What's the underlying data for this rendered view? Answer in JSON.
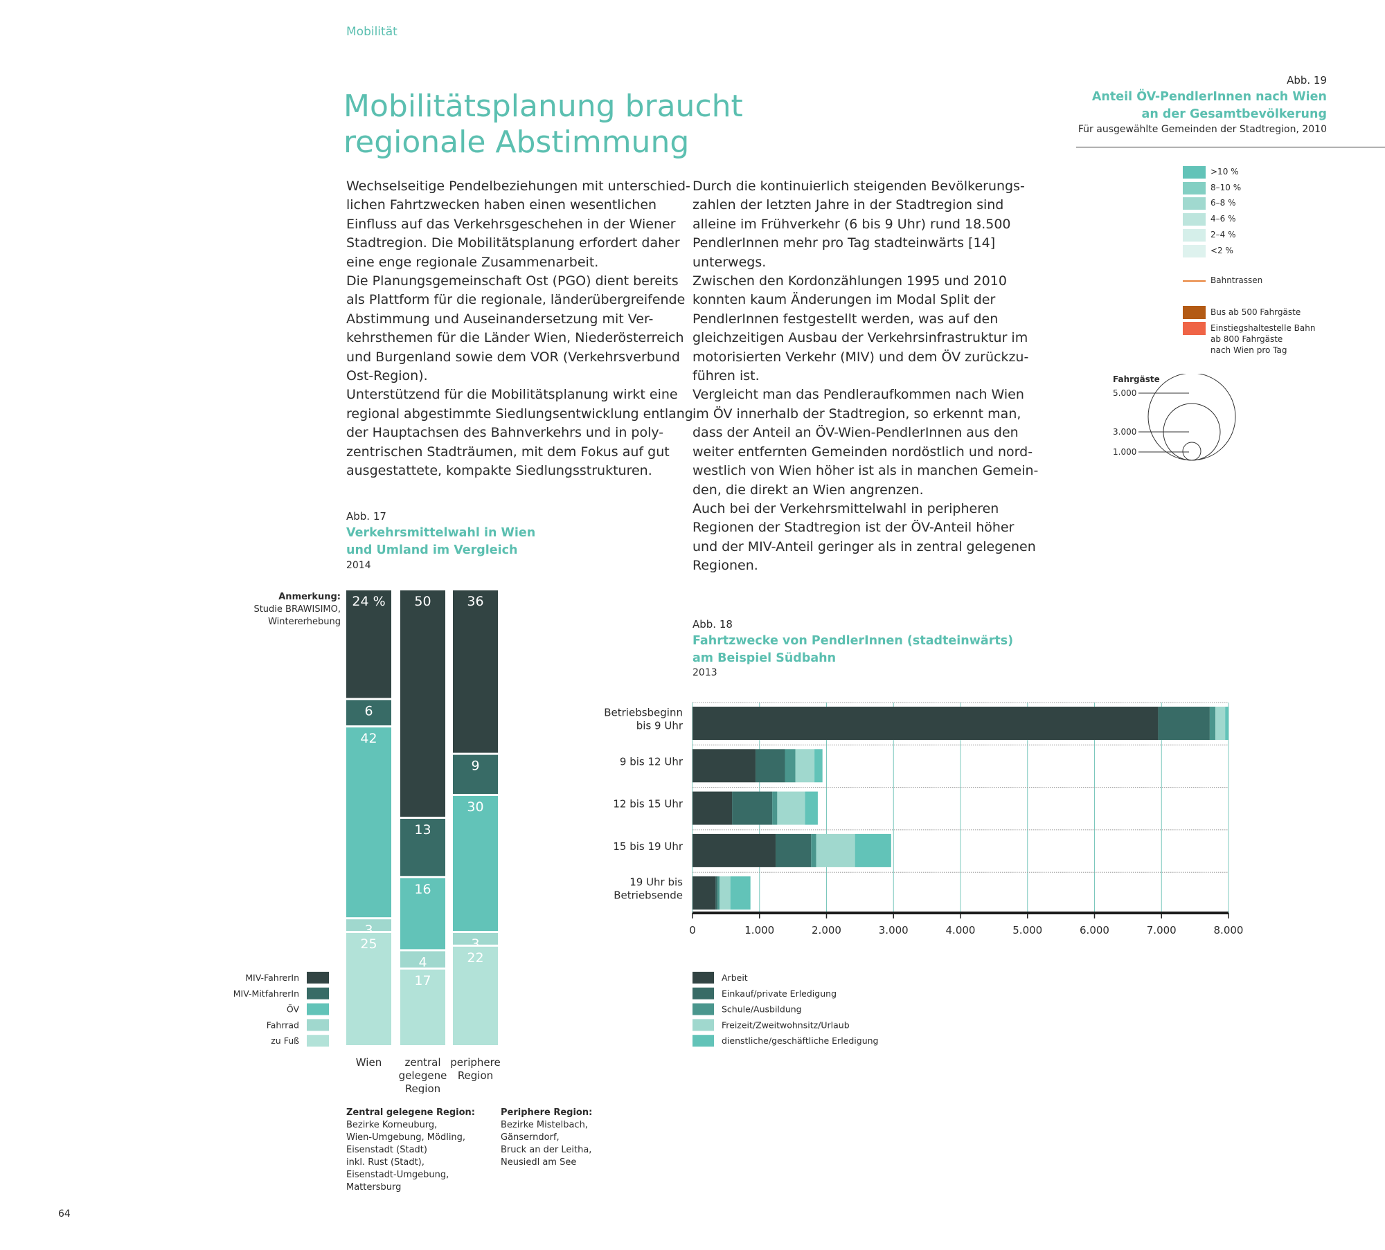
{
  "page": {
    "section": "Mobilität",
    "title_lines": [
      "Mobilitätsplanung braucht",
      "regionale Abstimmung"
    ],
    "page_number": "64"
  },
  "text": {
    "left_column": [
      "Wechselseitige Pendelbeziehungen mit unterschied-",
      "lichen Fahrtzwecken haben einen wesentlichen",
      "Einfluss auf das Verkehrsgeschehen in der Wiener",
      "Stadtregion. Die Mobilitätsplanung erfordert daher",
      "eine enge regionale Zusammenarbeit.",
      "Die Planungsgemeinschaft Ost (PGO) dient bereits",
      "als Plattform für die regionale, länderübergreifende",
      "Abstimmung und Auseinandersetzung mit Ver-",
      "kehrsthemen für die Länder Wien, Niederösterreich",
      "und Burgenland sowie dem VOR (Verkehrsverbund",
      "Ost-Region).",
      "Unterstützend für die Mobilitätsplanung wirkt eine",
      "regional abgestimmte Siedlungsentwicklung entlang",
      "der Hauptachsen des Bahnverkehrs und in poly-",
      "zentrischen Stadträumen, mit dem Fokus auf gut",
      "ausgestattete, kompakte Siedlungsstrukturen."
    ],
    "right_column": [
      "Durch die kontinuierlich steigenden Bevölkerungs-",
      "zahlen der letzten Jahre in der Stadtregion sind",
      "alleine im Frühverkehr (6 bis 9 Uhr) rund 18.500",
      "PendlerInnen mehr pro Tag stadteinwärts [14]",
      "unterwegs.",
      "Zwischen den Kordonzählungen 1995 und 2010",
      "konnten kaum Änderungen im Modal Split der",
      "PendlerInnen festgestellt werden, was auf den",
      "gleichzeitigen Ausbau der Verkehrsinfrastruktur im",
      "motorisierten Verkehr (MIV) und dem ÖV zurückzu-",
      "führen ist.",
      "Vergleicht man das Pendleraufkommen nach Wien",
      "im ÖV innerhalb der Stadtregion, so erkennt man,",
      "dass der Anteil an ÖV-Wien-PendlerInnen aus den",
      "weiter entfernten Gemeinden nordöstlich und nord-",
      "westlich von Wien höher ist als in manchen Gemein-",
      "den, die direkt an Wien angrenzen.",
      "Auch bei der Verkehrsmittelwahl in peripheren",
      "Regionen der Stadtregion ist der ÖV-Anteil höher",
      "und der MIV-Anteil geringer als in zentral gelegenen",
      "Regionen."
    ]
  },
  "colors": {
    "accent": "#5bbfb0",
    "miv_fahrer": "#324443",
    "miv_mitfahrer": "#386b66",
    "schule": "#4a968d",
    "oev": "#62c3b8",
    "fahrrad": "#a0d8ce",
    "fuss": "#b2e2d8"
  },
  "chart_data": [
    {
      "type": "bar",
      "stacked": true,
      "orientation": "vertical",
      "abb": "Abb. 17",
      "title": "Verkehrsmittelwahl in Wien und Umland im Vergleich",
      "title_lines": [
        "Verkehrsmittelwahl in Wien",
        "und Umland im Vergleich"
      ],
      "subtitle": "2014",
      "note_label": "Anmerkung:",
      "note_lines": [
        "Studie BRAWISIMO,",
        "Wintererhebung"
      ],
      "unit": "%",
      "categories": [
        "Wien",
        "zentral gelegene Region",
        "periphere Region"
      ],
      "category_lines": [
        [
          "Wien"
        ],
        [
          "zentral",
          "gelegene",
          "Region"
        ],
        [
          "periphere",
          "Region"
        ]
      ],
      "series": [
        {
          "name": "MIV-FahrerIn",
          "color": "#324443",
          "values": [
            24,
            50,
            36
          ]
        },
        {
          "name": "MIV-MitfahrerIn",
          "color": "#386b66",
          "values": [
            6,
            13,
            9
          ]
        },
        {
          "name": "ÖV",
          "color": "#62c3b8",
          "values": [
            42,
            16,
            30
          ]
        },
        {
          "name": "Fahrrad",
          "color": "#a0d8ce",
          "values": [
            3,
            4,
            3
          ]
        },
        {
          "name": "zu Fuß",
          "color": "#b2e2d8",
          "values": [
            25,
            17,
            22
          ]
        }
      ],
      "first_label": "24 %",
      "ylim": [
        0,
        100
      ],
      "footnotes": [
        {
          "heading": "Zentral gelegene Region:",
          "lines": [
            "Bezirke Korneuburg,",
            "Wien-Umgebung, Mödling,",
            "Eisenstadt (Stadt)",
            "inkl. Rust (Stadt),",
            "Eisenstadt-Umgebung,",
            "Mattersburg"
          ]
        },
        {
          "heading": "Periphere Region:",
          "lines": [
            "Bezirke Mistelbach,",
            "Gänserndorf,",
            "Bruck an der Leitha,",
            "Neusiedl am See"
          ]
        }
      ]
    },
    {
      "type": "bar",
      "stacked": true,
      "orientation": "horizontal",
      "abb": "Abb. 18",
      "title": "Fahrtzwecke von PendlerInnen (stadteinwärts) am Beispiel Südbahn",
      "title_lines": [
        "Fahrtzwecke von PendlerInnen (stadteinwärts)",
        "am Beispiel Südbahn"
      ],
      "subtitle": "2013",
      "categories": [
        "Betriebsbeginn bis 9 Uhr",
        "9 bis 12 Uhr",
        "12 bis 15 Uhr",
        "15 bis 19 Uhr",
        "19 Uhr bis Betriebsende"
      ],
      "category_lines": [
        [
          "Betriebsbeginn",
          "bis 9 Uhr"
        ],
        [
          "9 bis 12 Uhr"
        ],
        [
          "12 bis 15 Uhr"
        ],
        [
          "15 bis 19 Uhr"
        ],
        [
          "19 Uhr bis",
          "Betriebsende"
        ]
      ],
      "series": [
        {
          "name": "Arbeit",
          "color": "#324443",
          "values": [
            6950,
            940,
            590,
            1240,
            345
          ]
        },
        {
          "name": "Einkauf/private Erledigung",
          "color": "#386b66",
          "values": [
            770,
            440,
            600,
            530,
            30
          ]
        },
        {
          "name": "Schule/Ausbildung",
          "color": "#4a968d",
          "values": [
            85,
            155,
            75,
            75,
            30
          ]
        },
        {
          "name": "Freizeit/Zweitwohnsitz/Urlaub",
          "color": "#a0d8ce",
          "values": [
            145,
            285,
            415,
            580,
            160
          ]
        },
        {
          "name": "dienstliche/geschäftliche Erledigung",
          "color": "#62c3b8",
          "values": [
            50,
            120,
            190,
            540,
            300
          ]
        }
      ],
      "xlim": [
        0,
        8000
      ],
      "xticks": [
        0,
        1000,
        2000,
        3000,
        4000,
        5000,
        6000,
        7000,
        8000
      ],
      "xtick_labels": [
        "0",
        "1.000",
        "2.000",
        "3.000",
        "4.000",
        "5.000",
        "6.000",
        "7.000",
        "8.000"
      ],
      "grid": true,
      "legend": "bottom-left"
    }
  ],
  "map_legend": {
    "abb": "Abb. 19",
    "title_lines": [
      "Anteil ÖV-PendlerInnen nach Wien",
      "an der Gesamtbevölkerung"
    ],
    "subtitle": "Für ausgewählte Gemeinden der Stadtregion, 2010",
    "classes": [
      {
        "label": ">10 %",
        "color": "#62c3b8"
      },
      {
        "label": "8–10 %",
        "color": "#83cfc3"
      },
      {
        "label": "6–8 %",
        "color": "#a0d9cf"
      },
      {
        "label": "4–6 %",
        "color": "#bde5dd"
      },
      {
        "label": "2–4 %",
        "color": "#d5efea"
      },
      {
        "label": "<2 %",
        "color": "#def2ee"
      }
    ],
    "rail_label": "Bahntrassen",
    "rail_color": "#e8833a",
    "bus_label": "Bus ab 500 Fahrgäste",
    "bus_color": "#b35a14",
    "stop_label_lines": [
      "Einstiegshaltestelle Bahn",
      "ab 800 Fahrgäste",
      "nach Wien pro Tag"
    ],
    "stop_color": "#ef6446",
    "size_title": "Fahrgäste",
    "sizes": [
      "5.000",
      "3.000",
      "1.000"
    ]
  }
}
